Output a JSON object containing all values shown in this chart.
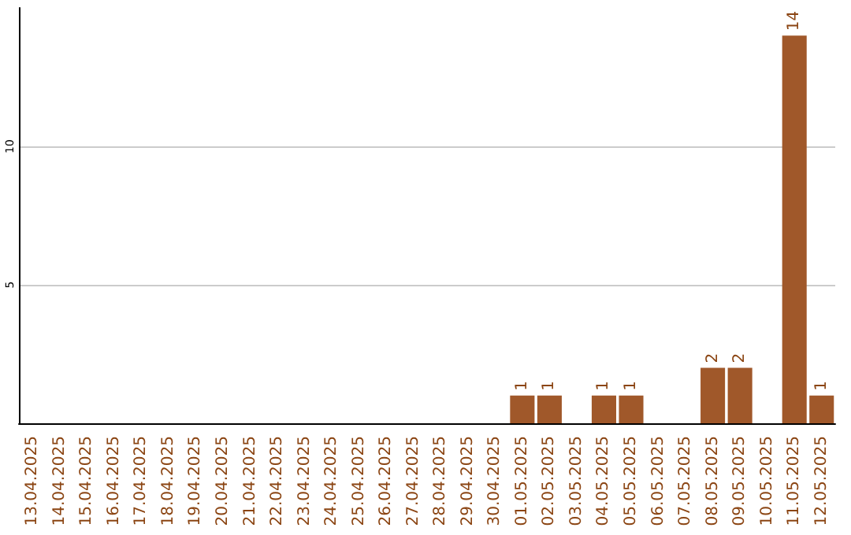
{
  "chart_data": {
    "type": "bar",
    "categories": [
      "13.04.2025",
      "14.04.2025",
      "15.04.2025",
      "16.04.2025",
      "17.04.2025",
      "18.04.2025",
      "19.04.2025",
      "20.04.2025",
      "21.04.2025",
      "22.04.2025",
      "23.04.2025",
      "24.04.2025",
      "25.04.2025",
      "26.04.2025",
      "27.04.2025",
      "28.04.2025",
      "29.04.2025",
      "30.04.2025",
      "01.05.2025",
      "02.05.2025",
      "03.05.2025",
      "04.05.2025",
      "05.05.2025",
      "06.05.2025",
      "07.05.2025",
      "08.05.2025",
      "09.05.2025",
      "10.05.2025",
      "11.05.2025",
      "12.05.2025"
    ],
    "values": [
      0,
      0,
      0,
      0,
      0,
      0,
      0,
      0,
      0,
      0,
      0,
      0,
      0,
      0,
      0,
      0,
      0,
      0,
      1,
      1,
      0,
      1,
      1,
      0,
      0,
      2,
      2,
      0,
      14,
      1
    ],
    "value_labels": [
      null,
      null,
      null,
      null,
      null,
      null,
      null,
      null,
      null,
      null,
      null,
      null,
      null,
      null,
      null,
      null,
      null,
      null,
      "1",
      "1",
      null,
      "1",
      "1",
      null,
      null,
      "2",
      "2",
      null,
      "14",
      "1"
    ],
    "color": "#a0582a",
    "ylim": [
      0,
      15
    ],
    "yticks": [
      5,
      10
    ],
    "grid": "y"
  }
}
